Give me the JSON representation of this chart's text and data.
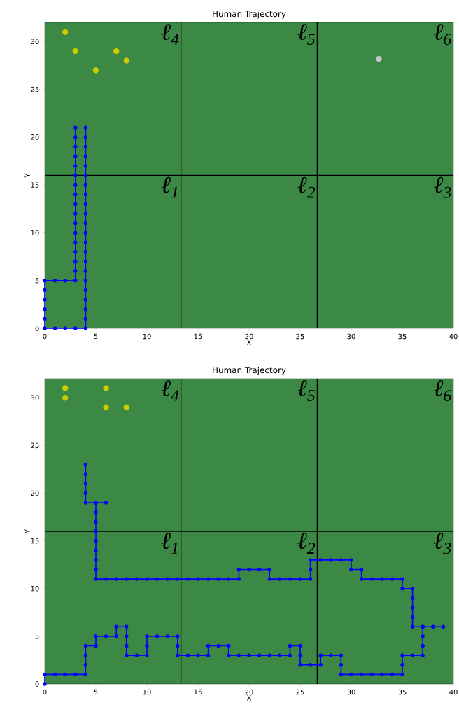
{
  "chart_data": [
    {
      "type": "line",
      "title": "Human Trajectory",
      "xlabel": "X",
      "ylabel": "Y",
      "xlim": [
        0,
        40
      ],
      "ylim": [
        0,
        32
      ],
      "xticks": [
        0,
        5,
        10,
        15,
        20,
        25,
        30,
        35,
        40
      ],
      "yticks": [
        0,
        5,
        10,
        15,
        20,
        25,
        30
      ],
      "ref_lines": [
        {
          "axis": "x",
          "value": 13.33,
          "color": "#000000"
        },
        {
          "axis": "x",
          "value": 26.67,
          "color": "#000000"
        },
        {
          "axis": "y",
          "value": 16,
          "color": "#000000"
        }
      ],
      "annotations": [
        "ℓ$_{1}$",
        "ℓ$_{2}$",
        "ℓ$_{3}$",
        "ℓ$_{4}$",
        "ℓ$_{5}$",
        "ℓ$_{6}$"
      ],
      "series": [
        {
          "type": "line",
          "color": "#0000ff",
          "marker": "circle",
          "x": [
            3,
            3,
            3,
            3,
            3,
            3,
            3,
            3,
            3,
            3,
            3,
            3,
            3,
            3,
            3,
            3,
            3,
            2,
            1,
            0,
            0,
            0,
            0,
            0,
            0,
            1,
            2,
            3,
            4,
            4,
            4,
            4,
            4,
            4,
            4,
            4,
            4,
            4,
            4,
            4,
            4,
            4,
            4,
            4,
            4,
            4,
            4,
            4,
            4,
            4
          ],
          "values": [
            21,
            20,
            19,
            18,
            17,
            16,
            15,
            14,
            13,
            12,
            11,
            10,
            9,
            8,
            7,
            6,
            5,
            5,
            5,
            5,
            4,
            3,
            2,
            1,
            0,
            0,
            0,
            0,
            0,
            1,
            2,
            3,
            4,
            5,
            6,
            7,
            8,
            9,
            10,
            11,
            12,
            13,
            14,
            15,
            16,
            17,
            18,
            19,
            20,
            21
          ]
        },
        {
          "type": "scatter",
          "color": "#cccc00",
          "marker": "circle",
          "x": [
            2,
            3,
            7,
            8,
            5
          ],
          "values": [
            31,
            29,
            29,
            28,
            27
          ]
        },
        {
          "type": "scatter",
          "color": "#c8c8c8",
          "marker": "circle",
          "x": [
            32.7
          ],
          "values": [
            28.2
          ]
        }
      ]
    },
    {
      "type": "line",
      "title": "Human Trajectory",
      "xlabel": "X",
      "ylabel": "Y",
      "xlim": [
        0,
        40
      ],
      "ylim": [
        0,
        32
      ],
      "xticks": [
        0,
        5,
        10,
        15,
        20,
        25,
        30,
        35,
        40
      ],
      "yticks": [
        0,
        5,
        10,
        15,
        20,
        25,
        30
      ],
      "ref_lines": [
        {
          "axis": "x",
          "value": 13.33,
          "color": "#000000"
        },
        {
          "axis": "x",
          "value": 26.67,
          "color": "#000000"
        },
        {
          "axis": "y",
          "value": 16,
          "color": "#000000"
        }
      ],
      "annotations": [
        "ℓ$_{1}$",
        "ℓ$_{2}$",
        "ℓ$_{3}$",
        "ℓ$_{4}$",
        "ℓ$_{5}$",
        "ℓ$_{6}$"
      ],
      "series": [
        {
          "type": "line",
          "color": "#0000ff",
          "marker": "circle",
          "x": [
            4,
            4,
            4,
            4,
            4,
            5,
            6,
            5,
            5,
            5,
            5,
            5,
            5,
            5,
            5,
            5,
            6,
            7,
            8,
            9,
            10,
            11,
            12,
            13,
            14,
            15,
            16,
            17,
            18,
            19,
            19,
            20,
            21,
            22,
            22,
            23,
            24,
            25,
            26,
            26,
            26,
            27,
            28,
            29,
            30,
            30,
            31,
            31,
            32,
            33,
            34,
            35,
            35,
            36,
            36,
            36,
            36,
            36,
            37,
            38,
            39
          ],
          "values": [
            23,
            22,
            21,
            20,
            19,
            19,
            19,
            19,
            18,
            17,
            16,
            15,
            14,
            13,
            12,
            11,
            11,
            11,
            11,
            11,
            11,
            11,
            11,
            11,
            11,
            11,
            11,
            11,
            11,
            11,
            12,
            12,
            12,
            12,
            11,
            11,
            11,
            11,
            11,
            12,
            13,
            13,
            13,
            13,
            13,
            12,
            12,
            11,
            11,
            11,
            11,
            11,
            10,
            10,
            9,
            8,
            7,
            6,
            6,
            6,
            6
          ]
        },
        {
          "type": "line",
          "color": "#0000ff",
          "marker": "circle",
          "x": [
            0,
            0,
            1,
            2,
            3,
            4,
            4,
            4,
            4,
            5,
            5,
            6,
            7,
            7,
            8,
            8,
            8,
            8,
            8,
            9,
            10,
            10,
            10,
            11,
            12,
            13,
            13,
            13,
            14,
            15,
            16,
            16,
            17,
            18,
            18,
            19,
            20,
            21,
            22,
            23,
            24,
            24,
            25,
            25,
            25,
            26,
            27,
            27,
            28,
            29,
            29,
            29,
            30,
            31,
            32,
            33,
            34,
            35,
            35,
            35,
            36,
            37,
            37,
            37,
            37
          ],
          "values": [
            0,
            1,
            1,
            1,
            1,
            1,
            2,
            3,
            4,
            4,
            5,
            5,
            5,
            6,
            6,
            5,
            4,
            3,
            3,
            3,
            3,
            4,
            5,
            5,
            5,
            5,
            4,
            3,
            3,
            3,
            3,
            4,
            4,
            4,
            3,
            3,
            3,
            3,
            3,
            3,
            3,
            4,
            4,
            3,
            2,
            2,
            2,
            3,
            3,
            3,
            2,
            1,
            1,
            1,
            1,
            1,
            1,
            1,
            2,
            3,
            3,
            3,
            4,
            5,
            6
          ]
        },
        {
          "type": "scatter",
          "color": "#cccc00",
          "marker": "circle",
          "x": [
            2,
            2,
            6,
            6,
            8
          ],
          "values": [
            31,
            30,
            31,
            29,
            29
          ]
        }
      ]
    }
  ]
}
